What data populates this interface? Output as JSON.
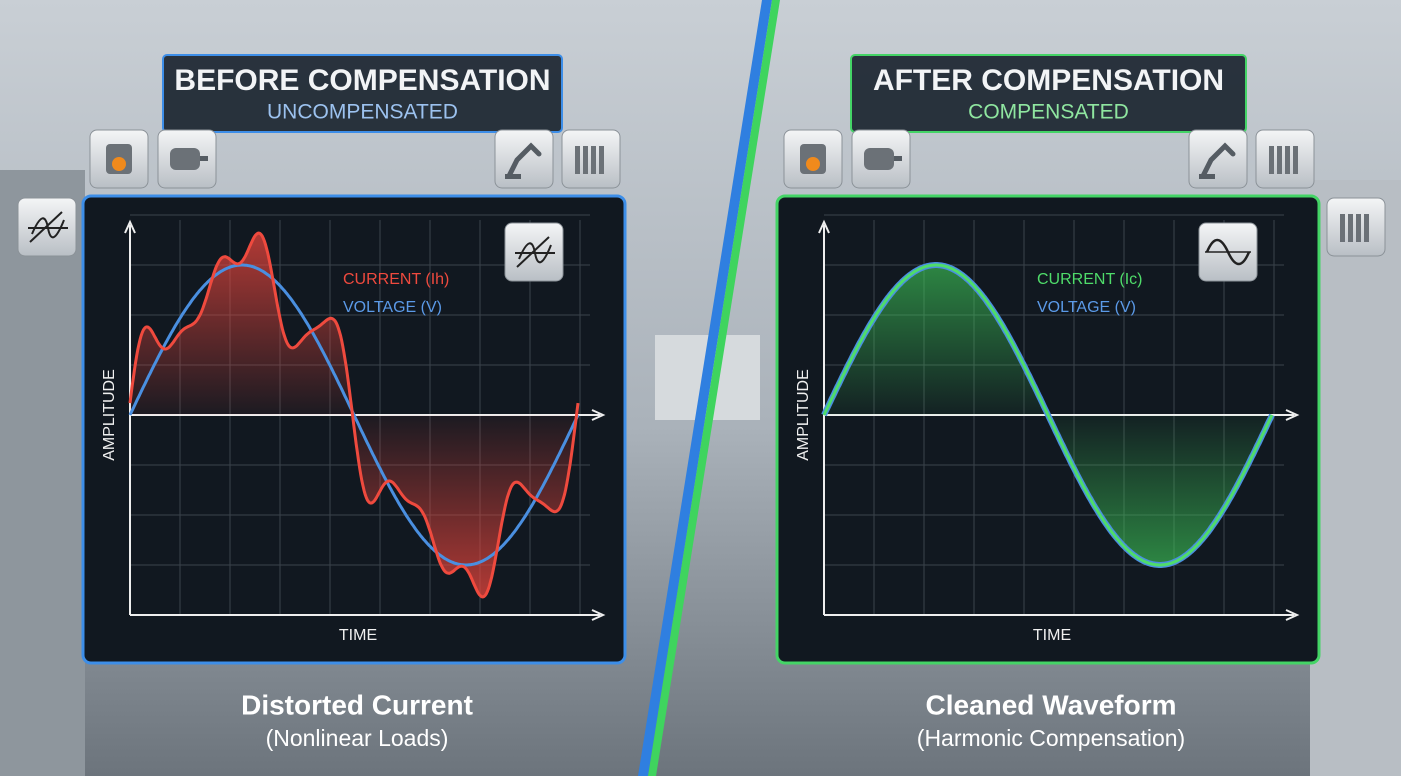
{
  "panels": [
    {
      "title": "BEFORE COMPENSATION",
      "subtitle": "UNCOMPENSATED",
      "current_label": "CURRENT (Ih)",
      "voltage_label": "VOLTAGE (V)",
      "y_label": "AMPLITUDE",
      "x_label": "TIME",
      "caption": "Distorted Current",
      "caption_sub": "(Nonlinear Loads)"
    },
    {
      "title": "AFTER COMPENSATION",
      "subtitle": "COMPENSATED",
      "current_label": "CURRENT (Ic)",
      "voltage_label": "VOLTAGE (V)",
      "y_label": "AMPLITUDE",
      "x_label": "TIME",
      "caption": "Cleaned Waveform",
      "caption_sub": "(Harmonic Compensation)"
    }
  ]
}
